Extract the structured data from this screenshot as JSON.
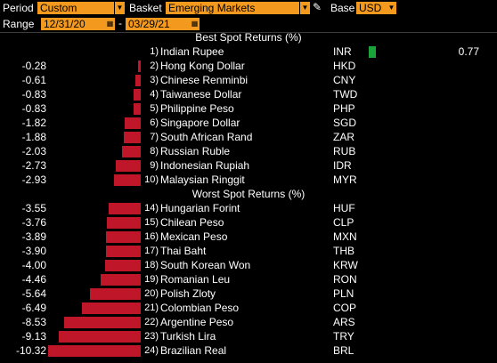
{
  "header": {
    "period_label": "Period",
    "period_value": "Custom",
    "basket_label": "Basket",
    "basket_value": "Emerging Markets",
    "base_label": "Base",
    "base_value": "USD",
    "range_label": "Range",
    "range_start": "12/31/20",
    "range_sep": "-",
    "range_end": "03/29/21"
  },
  "best_title": "Best Spot Returns (%)",
  "worst_title": "Worst Spot Returns (%)",
  "colors": {
    "accent": "#f39a1e",
    "negative": "#c0162a",
    "positive": "#1aa338"
  },
  "best": [
    {
      "rank": "1)",
      "name": "Indian Rupee",
      "code": "INR",
      "left": "",
      "right": "0.77",
      "value": 0.77
    },
    {
      "rank": "2)",
      "name": "Hong Kong Dollar",
      "code": "HKD",
      "left": "-0.28",
      "right": "",
      "value": -0.28
    },
    {
      "rank": "3)",
      "name": "Chinese Renminbi",
      "code": "CNY",
      "left": "-0.61",
      "right": "",
      "value": -0.61
    },
    {
      "rank": "4)",
      "name": "Taiwanese Dollar",
      "code": "TWD",
      "left": "-0.83",
      "right": "",
      "value": -0.83
    },
    {
      "rank": "5)",
      "name": "Philippine Peso",
      "code": "PHP",
      "left": "-0.83",
      "right": "",
      "value": -0.83
    },
    {
      "rank": "6)",
      "name": "Singapore Dollar",
      "code": "SGD",
      "left": "-1.82",
      "right": "",
      "value": -1.82
    },
    {
      "rank": "7)",
      "name": "South African Rand",
      "code": "ZAR",
      "left": "-1.88",
      "right": "",
      "value": -1.88
    },
    {
      "rank": "8)",
      "name": "Russian Ruble",
      "code": "RUB",
      "left": "-2.03",
      "right": "",
      "value": -2.03
    },
    {
      "rank": "9)",
      "name": "Indonesian Rupiah",
      "code": "IDR",
      "left": "-2.73",
      "right": "",
      "value": -2.73
    },
    {
      "rank": "10)",
      "name": "Malaysian Ringgit",
      "code": "MYR",
      "left": "-2.93",
      "right": "",
      "value": -2.93
    }
  ],
  "worst": [
    {
      "rank": "14)",
      "name": "Hungarian Forint",
      "code": "HUF",
      "left": "-3.55",
      "value": -3.55
    },
    {
      "rank": "15)",
      "name": "Chilean Peso",
      "code": "CLP",
      "left": "-3.76",
      "value": -3.76
    },
    {
      "rank": "16)",
      "name": "Mexican Peso",
      "code": "MXN",
      "left": "-3.89",
      "value": -3.89
    },
    {
      "rank": "17)",
      "name": "Thai Baht",
      "code": "THB",
      "left": "-3.90",
      "value": -3.9
    },
    {
      "rank": "18)",
      "name": "South Korean Won",
      "code": "KRW",
      "left": "-4.00",
      "value": -4.0
    },
    {
      "rank": "19)",
      "name": "Romanian Leu",
      "code": "RON",
      "left": "-4.46",
      "value": -4.46
    },
    {
      "rank": "20)",
      "name": "Polish Zloty",
      "code": "PLN",
      "left": "-5.64",
      "value": -5.64
    },
    {
      "rank": "21)",
      "name": "Colombian Peso",
      "code": "COP",
      "left": "-6.49",
      "value": -6.49
    },
    {
      "rank": "22)",
      "name": "Argentine Peso",
      "code": "ARS",
      "left": "-8.53",
      "value": -8.53
    },
    {
      "rank": "23)",
      "name": "Turkish Lira",
      "code": "TRY",
      "left": "-9.13",
      "value": -9.13
    },
    {
      "rank": "24)",
      "name": "Brazilian Real",
      "code": "BRL",
      "left": "-10.32",
      "value": -10.32
    }
  ]
}
